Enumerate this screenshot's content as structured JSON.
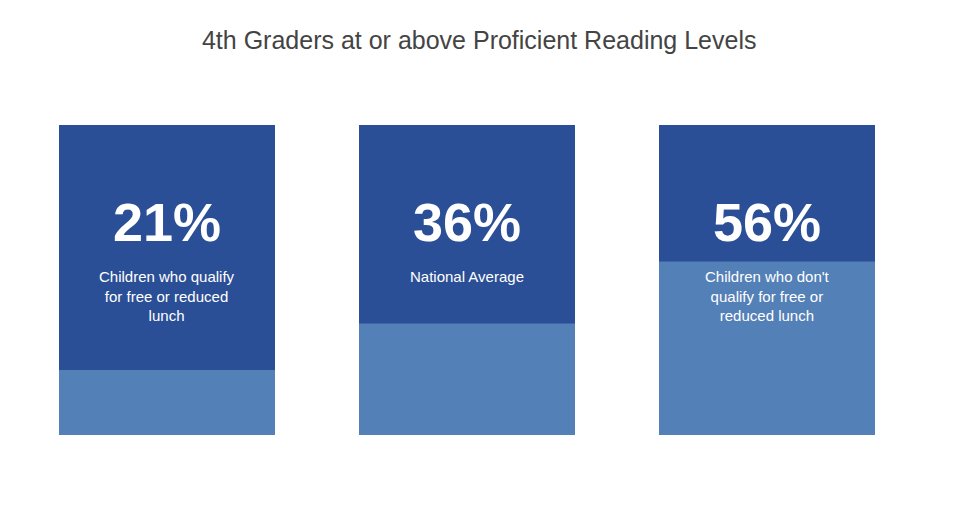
{
  "chart_data": {
    "type": "bar",
    "title": "4th Graders at or above Proficient Reading Levels",
    "categories": [
      "Children who qualify for free or reduced lunch",
      "National Average",
      "Children who don't qualify for free or reduced lunch"
    ],
    "values": [
      21,
      36,
      56
    ],
    "value_labels": [
      "21%",
      "36%",
      "56%"
    ],
    "color": "#5480b8",
    "ylim": [
      0,
      100
    ],
    "data_labels": true,
    "tick_labels": false
  }
}
